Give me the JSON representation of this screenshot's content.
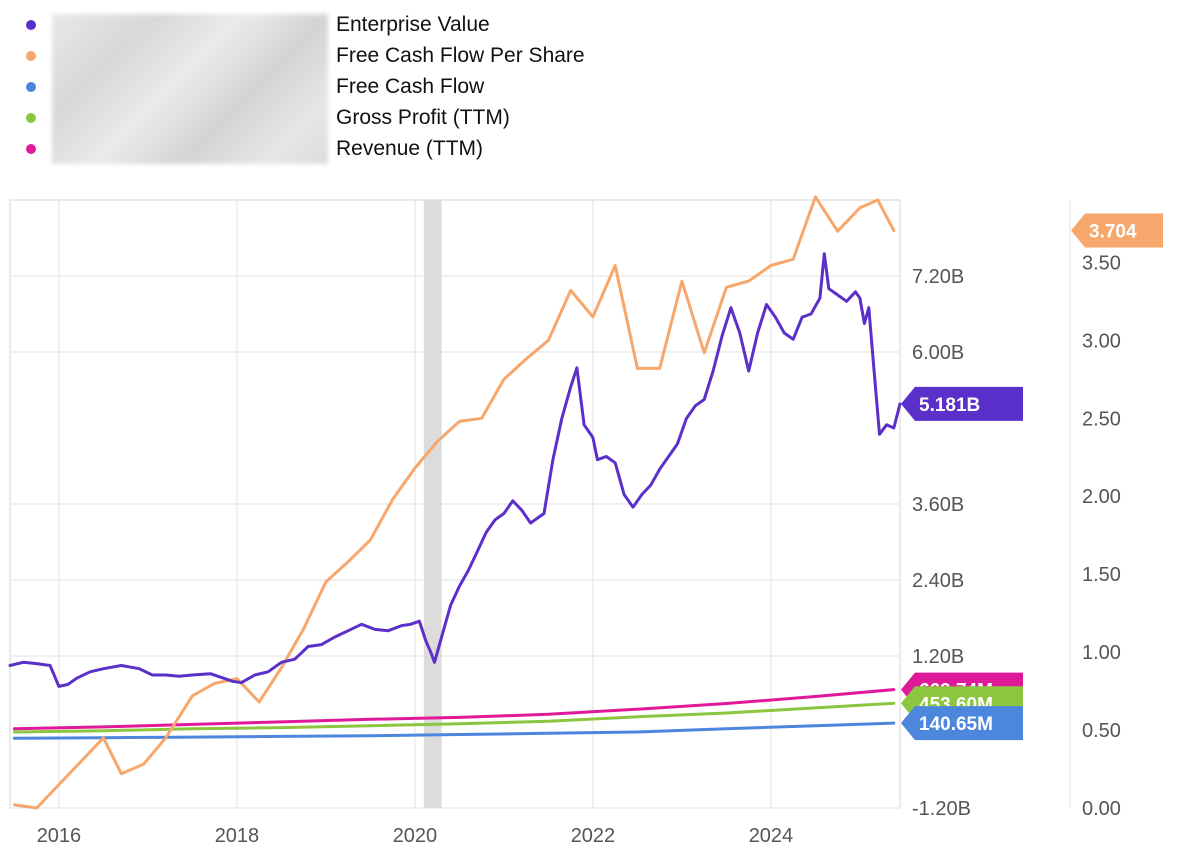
{
  "legend": {
    "items": [
      {
        "label": "Enterprise Value",
        "color": "#5b2fc9"
      },
      {
        "label": "Free Cash Flow Per Share",
        "color": "#f7a76c"
      },
      {
        "label": "Free Cash Flow",
        "color": "#4d86dd"
      },
      {
        "label": "Gross Profit (TTM)",
        "color": "#8cc63f"
      },
      {
        "label": "Revenue (TTM)",
        "color": "#e0189a"
      }
    ]
  },
  "chart_data": {
    "type": "line",
    "x_tick_labels": [
      "2016",
      "2018",
      "2020",
      "2022",
      "2024"
    ],
    "xlim": [
      2015.45,
      2025.45
    ],
    "left_axis": {
      "tick_labels": [
        "-1.20B",
        "1.20B",
        "2.40B",
        "3.60B",
        "6.00B",
        "7.20B"
      ],
      "tick_values": [
        -1.2,
        1.2,
        2.4,
        3.6,
        6.0,
        7.2
      ],
      "ylim": [
        -1.2,
        8.4
      ],
      "unit": "billions"
    },
    "right_axis": {
      "tick_labels": [
        "0.00",
        "0.50",
        "1.00",
        "1.50",
        "2.00",
        "2.50",
        "3.00",
        "3.50"
      ],
      "tick_values": [
        0,
        0.5,
        1.0,
        1.5,
        2.0,
        2.5,
        3.0,
        3.5
      ],
      "ylim": [
        0,
        3.9
      ]
    },
    "grid": true,
    "recession_band": [
      2020.1,
      2020.3
    ],
    "series": [
      {
        "name": "Enterprise Value",
        "axis": "left",
        "color": "#5b2fc9",
        "x": [
          2015.45,
          2015.6,
          2015.75,
          2015.9,
          2016.0,
          2016.1,
          2016.2,
          2016.35,
          2016.5,
          2016.7,
          2016.9,
          2017.05,
          2017.2,
          2017.35,
          2017.5,
          2017.7,
          2017.85,
          2017.95,
          2018.05,
          2018.2,
          2018.35,
          2018.5,
          2018.65,
          2018.8,
          2018.95,
          2019.1,
          2019.25,
          2019.4,
          2019.55,
          2019.7,
          2019.85,
          2019.95,
          2020.05,
          2020.12,
          2020.18,
          2020.22,
          2020.3,
          2020.4,
          2020.5,
          2020.6,
          2020.7,
          2020.8,
          2020.9,
          2021.0,
          2021.1,
          2021.2,
          2021.3,
          2021.45,
          2021.55,
          2021.65,
          2021.75,
          2021.82,
          2021.9,
          2022.0,
          2022.05,
          2022.15,
          2022.25,
          2022.35,
          2022.45,
          2022.55,
          2022.65,
          2022.75,
          2022.85,
          2022.95,
          2023.05,
          2023.15,
          2023.25,
          2023.35,
          2023.45,
          2023.55,
          2023.65,
          2023.75,
          2023.85,
          2023.95,
          2024.05,
          2024.15,
          2024.25,
          2024.35,
          2024.45,
          2024.55,
          2024.6,
          2024.65,
          2024.75,
          2024.85,
          2024.95,
          2025.0,
          2025.05,
          2025.1,
          2025.15,
          2025.22,
          2025.3,
          2025.38,
          2025.45
        ],
        "values": [
          1.05,
          1.1,
          1.08,
          1.05,
          0.72,
          0.75,
          0.85,
          0.95,
          1.0,
          1.05,
          1.0,
          0.9,
          0.9,
          0.88,
          0.9,
          0.92,
          0.85,
          0.8,
          0.78,
          0.9,
          0.95,
          1.1,
          1.15,
          1.35,
          1.38,
          1.5,
          1.6,
          1.7,
          1.62,
          1.6,
          1.68,
          1.7,
          1.75,
          1.45,
          1.25,
          1.1,
          1.5,
          2.0,
          2.3,
          2.55,
          2.85,
          3.15,
          3.35,
          3.45,
          3.65,
          3.5,
          3.3,
          3.45,
          4.3,
          4.95,
          5.45,
          5.75,
          4.85,
          4.65,
          4.3,
          4.35,
          4.25,
          3.75,
          3.55,
          3.75,
          3.9,
          4.15,
          4.35,
          4.55,
          4.95,
          5.15,
          5.25,
          5.7,
          6.25,
          6.7,
          6.3,
          5.7,
          6.3,
          6.75,
          6.55,
          6.3,
          6.2,
          6.55,
          6.6,
          6.85,
          7.55,
          7.0,
          6.9,
          6.8,
          6.95,
          6.85,
          6.45,
          6.7,
          5.85,
          4.7,
          4.85,
          4.8,
          5.181
        ]
      },
      {
        "name": "Free Cash Flow Per Share",
        "axis": "right",
        "color": "#f7a76c",
        "x": [
          2015.5,
          2015.75,
          2016.0,
          2016.25,
          2016.5,
          2016.7,
          2016.95,
          2017.2,
          2017.5,
          2017.75,
          2018.0,
          2018.25,
          2018.5,
          2018.75,
          2019.0,
          2019.25,
          2019.5,
          2019.75,
          2020.0,
          2020.25,
          2020.5,
          2020.75,
          2021.0,
          2021.25,
          2021.5,
          2021.75,
          2022.0,
          2022.25,
          2022.5,
          2022.75,
          2023.0,
          2023.25,
          2023.5,
          2023.75,
          2024.0,
          2024.25,
          2024.5,
          2024.75,
          2025.0,
          2025.2,
          2025.38
        ],
        "values": [
          0.02,
          0.0,
          0.15,
          0.3,
          0.45,
          0.22,
          0.28,
          0.45,
          0.72,
          0.8,
          0.83,
          0.68,
          0.9,
          1.15,
          1.45,
          1.58,
          1.72,
          1.98,
          2.18,
          2.35,
          2.48,
          2.5,
          2.75,
          2.88,
          3.0,
          3.32,
          3.15,
          3.48,
          2.82,
          2.82,
          3.38,
          2.92,
          3.34,
          3.38,
          3.48,
          3.52,
          3.92,
          3.7,
          3.85,
          3.9,
          3.704
        ]
      },
      {
        "name": "Free Cash Flow",
        "axis": "left",
        "color": "#4d86dd",
        "x": [
          2015.5,
          2016.5,
          2017.5,
          2018.5,
          2019.5,
          2020.5,
          2021.5,
          2022.5,
          2023.5,
          2024.5,
          2025.38
        ],
        "values": [
          -0.1,
          -0.09,
          -0.08,
          -0.07,
          -0.06,
          -0.04,
          -0.02,
          0.0,
          0.05,
          0.1,
          0.14065
        ]
      },
      {
        "name": "Gross Profit (TTM)",
        "axis": "left",
        "color": "#8cc63f",
        "x": [
          2015.5,
          2016.5,
          2017.5,
          2018.5,
          2019.5,
          2020.5,
          2021.5,
          2022.5,
          2023.5,
          2024.5,
          2025.38
        ],
        "values": [
          0.0,
          0.02,
          0.05,
          0.07,
          0.1,
          0.13,
          0.17,
          0.24,
          0.3,
          0.38,
          0.4536
        ]
      },
      {
        "name": "Revenue (TTM)",
        "axis": "left",
        "color": "#e0189a",
        "x": [
          2015.5,
          2016.5,
          2017.5,
          2018.5,
          2019.5,
          2020.5,
          2021.5,
          2022.5,
          2023.5,
          2024.5,
          2025.38
        ],
        "values": [
          0.05,
          0.08,
          0.12,
          0.16,
          0.2,
          0.23,
          0.28,
          0.36,
          0.45,
          0.56,
          0.66974
        ]
      }
    ],
    "end_labels": [
      {
        "text": "3.704",
        "series": "Free Cash Flow Per Share",
        "value": 3.704,
        "axis": "right",
        "color": "#f7a76c"
      },
      {
        "text": "5.181B",
        "series": "Enterprise Value",
        "value": 5.181,
        "axis": "left",
        "color": "#5b2fc9"
      },
      {
        "text": "669.74M",
        "series": "Revenue (TTM)",
        "value": 0.66974,
        "axis": "left",
        "color": "#e0189a"
      },
      {
        "text": "453.60M",
        "series": "Gross Profit (TTM)",
        "value": 0.4536,
        "axis": "left",
        "color": "#8cc63f"
      },
      {
        "text": "140.65M",
        "series": "Free Cash Flow",
        "value": 0.14065,
        "axis": "left",
        "color": "#4d86dd"
      }
    ]
  }
}
